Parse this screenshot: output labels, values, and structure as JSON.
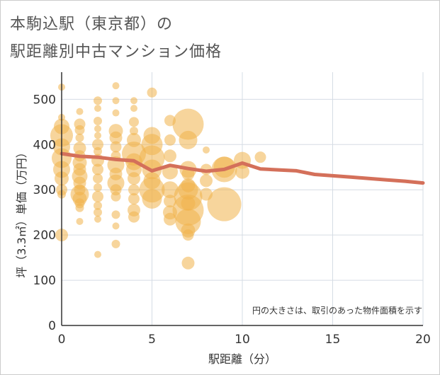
{
  "title_line1": "本駒込駅（東京都）の",
  "title_line2": "駅距離別中古マンション価格",
  "chart_data": {
    "type": "scatter",
    "xlabel": "駅距離（分）",
    "ylabel": "坪（3.3㎡）単価（万円）",
    "xlim": [
      0,
      20
    ],
    "ylim": [
      0,
      560
    ],
    "x_ticks": [
      "0",
      "5",
      "10",
      "15",
      "20"
    ],
    "y_ticks": [
      "0",
      "100",
      "200",
      "300",
      "400",
      "500"
    ],
    "note": "円の大きさは、取引のあった物件面積を示す",
    "colors": {
      "bubble": "#f0b24a",
      "line": "#d4705a",
      "grid": "#d5dce4"
    },
    "bubbles": [
      [
        0,
        527,
        5
      ],
      [
        0,
        460,
        5
      ],
      [
        0,
        440,
        11
      ],
      [
        0,
        420,
        16
      ],
      [
        0,
        395,
        12
      ],
      [
        0,
        370,
        14
      ],
      [
        0,
        345,
        12
      ],
      [
        0,
        325,
        10
      ],
      [
        0,
        300,
        8
      ],
      [
        0,
        290,
        6
      ],
      [
        0,
        200,
        9
      ],
      [
        1,
        473,
        5
      ],
      [
        1,
        445,
        8
      ],
      [
        1,
        432,
        7
      ],
      [
        1,
        415,
        6
      ],
      [
        1,
        392,
        9
      ],
      [
        1,
        375,
        8
      ],
      [
        1,
        360,
        10
      ],
      [
        1,
        345,
        9
      ],
      [
        1,
        330,
        11
      ],
      [
        1,
        315,
        9
      ],
      [
        1,
        300,
        8
      ],
      [
        1,
        290,
        13
      ],
      [
        1,
        280,
        10
      ],
      [
        1,
        270,
        7
      ],
      [
        1,
        260,
        6
      ],
      [
        1,
        230,
        5
      ],
      [
        2,
        497,
        6
      ],
      [
        2,
        480,
        5
      ],
      [
        2,
        452,
        6
      ],
      [
        2,
        435,
        5
      ],
      [
        2,
        420,
        5
      ],
      [
        2,
        400,
        8
      ],
      [
        2,
        385,
        6
      ],
      [
        2,
        365,
        9
      ],
      [
        2,
        345,
        8
      ],
      [
        2,
        325,
        7
      ],
      [
        2,
        305,
        6
      ],
      [
        2,
        285,
        8
      ],
      [
        2,
        265,
        6
      ],
      [
        2,
        250,
        6
      ],
      [
        2,
        235,
        5
      ],
      [
        2,
        157,
        5
      ],
      [
        3,
        530,
        5
      ],
      [
        3,
        497,
        5
      ],
      [
        3,
        470,
        5
      ],
      [
        3,
        430,
        10
      ],
      [
        3,
        415,
        9
      ],
      [
        3,
        395,
        8
      ],
      [
        3,
        375,
        7
      ],
      [
        3,
        355,
        12
      ],
      [
        3,
        335,
        9
      ],
      [
        3,
        315,
        12
      ],
      [
        3,
        300,
        8
      ],
      [
        3,
        285,
        7
      ],
      [
        3,
        245,
        6
      ],
      [
        3,
        220,
        5
      ],
      [
        3,
        180,
        6
      ],
      [
        4,
        497,
        5
      ],
      [
        4,
        480,
        5
      ],
      [
        4,
        450,
        7
      ],
      [
        4,
        430,
        6
      ],
      [
        4,
        410,
        10
      ],
      [
        4,
        380,
        17
      ],
      [
        4,
        362,
        12
      ],
      [
        4,
        345,
        11
      ],
      [
        4,
        325,
        9
      ],
      [
        4,
        300,
        8
      ],
      [
        4,
        280,
        8
      ],
      [
        4,
        255,
        9
      ],
      [
        4,
        240,
        8
      ],
      [
        5,
        515,
        7
      ],
      [
        5,
        420,
        12
      ],
      [
        5,
        400,
        15
      ],
      [
        5,
        370,
        18
      ],
      [
        5,
        345,
        14
      ],
      [
        5,
        320,
        12
      ],
      [
        5,
        300,
        18
      ],
      [
        5,
        280,
        14
      ],
      [
        6,
        453,
        8
      ],
      [
        6,
        410,
        8
      ],
      [
        6,
        375,
        9
      ],
      [
        6,
        340,
        11
      ],
      [
        6,
        300,
        12
      ],
      [
        6,
        275,
        9
      ],
      [
        6,
        250,
        10
      ],
      [
        6,
        235,
        9
      ],
      [
        7,
        445,
        22
      ],
      [
        7,
        410,
        13
      ],
      [
        7,
        345,
        12
      ],
      [
        7,
        335,
        9
      ],
      [
        7,
        310,
        10
      ],
      [
        7,
        300,
        14
      ],
      [
        7,
        285,
        20
      ],
      [
        7,
        270,
        10
      ],
      [
        7,
        255,
        22
      ],
      [
        7,
        230,
        18
      ],
      [
        7,
        210,
        10
      ],
      [
        7,
        200,
        8
      ],
      [
        7,
        138,
        9
      ],
      [
        8,
        388,
        5
      ],
      [
        8,
        345,
        8
      ],
      [
        8,
        320,
        9
      ],
      [
        8,
        290,
        9
      ],
      [
        9,
        350,
        15
      ],
      [
        9,
        345,
        18
      ],
      [
        9,
        268,
        24
      ],
      [
        10,
        365,
        12
      ],
      [
        10,
        340,
        10
      ],
      [
        11,
        372,
        8
      ]
    ],
    "series": [
      {
        "x": [
          0,
          1,
          2,
          3,
          4,
          5,
          6,
          7,
          8,
          9,
          10,
          11,
          12,
          13,
          14,
          15,
          16,
          17,
          18,
          19,
          20
        ],
        "y": [
          380,
          374,
          372,
          367,
          364,
          342,
          354,
          347,
          341,
          345,
          359,
          346,
          344,
          342,
          334,
          331,
          328,
          325,
          322,
          319,
          315
        ]
      }
    ]
  }
}
